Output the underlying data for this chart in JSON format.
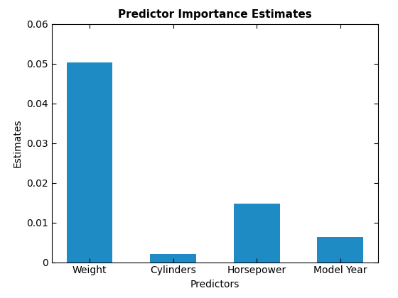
{
  "categories": [
    "Weight",
    "Cylinders",
    "Horsepower",
    "Model Year"
  ],
  "values": [
    0.0503,
    0.002,
    0.0147,
    0.0063
  ],
  "bar_color": "#1f8bc4",
  "title": "Predictor Importance Estimates",
  "xlabel": "Predictors",
  "ylabel": "Estimates",
  "ylim": [
    0,
    0.06
  ],
  "yticks": [
    0,
    0.01,
    0.02,
    0.03,
    0.04,
    0.05,
    0.06
  ],
  "ytick_labels": [
    "0",
    "0.01",
    "0.02",
    "0.03",
    "0.04",
    "0.05",
    "0.06"
  ],
  "background_color": "#ffffff",
  "title_fontsize": 11,
  "label_fontsize": 10,
  "tick_fontsize": 10,
  "bar_width": 0.55
}
